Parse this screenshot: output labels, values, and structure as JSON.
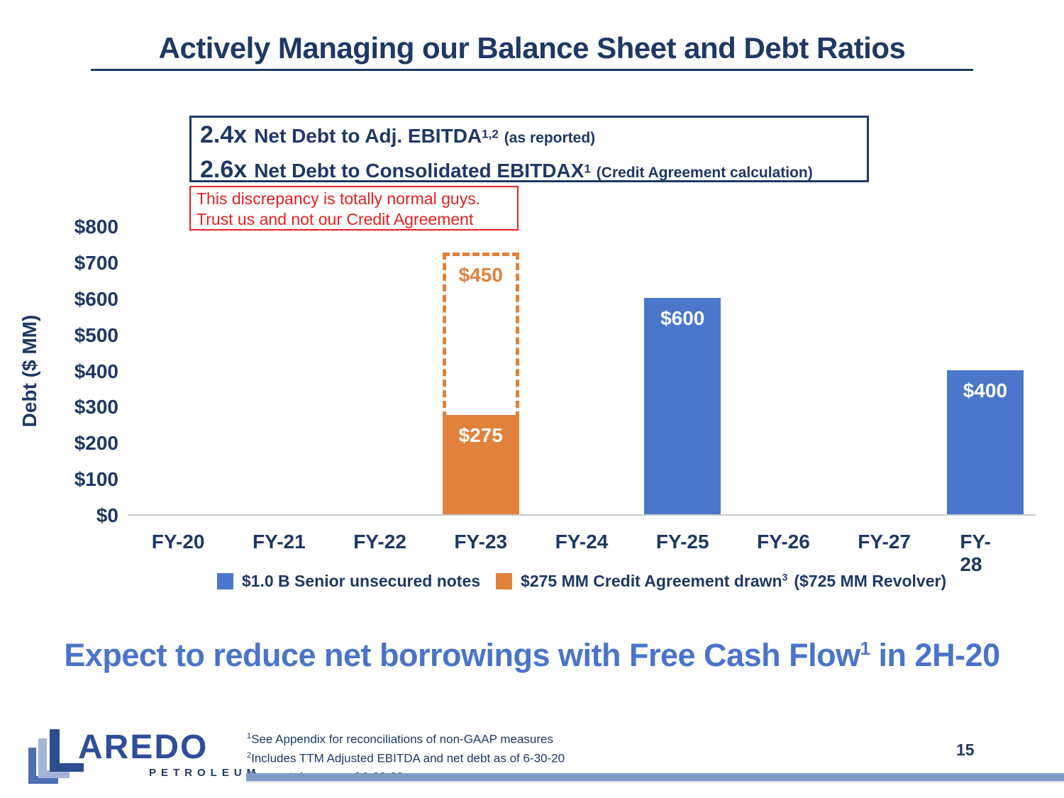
{
  "slide": {
    "title": "Actively Managing our Balance Sheet and Debt Ratios",
    "page_number": "15"
  },
  "colors": {
    "navy": "#1F3864",
    "blue": "#4A77C9",
    "orange": "#E0813C",
    "red": "#E62020",
    "headline_blue": "#4A74C9",
    "footer_bar": "#7E9AC4",
    "baseline_gray": "#CBCBCB"
  },
  "ratio_box": {
    "rows": [
      {
        "ratio": "2.4x",
        "main": "Net Debt to Adj. EBITDA",
        "sup": "1,2",
        "note": "(as reported)"
      },
      {
        "ratio": "2.6x",
        "main": "Net Debt to Consolidated EBITDAX",
        "sup": "1",
        "note": "(Credit Agreement calculation)"
      }
    ]
  },
  "annotation_box": {
    "line1": "This discrepancy is totally normal guys.",
    "line2": "Trust us and not our Credit Agreement"
  },
  "chart_data": {
    "type": "bar",
    "ylabel": "Debt ($ MM)",
    "ylim": [
      0,
      800
    ],
    "yticks": [
      "$800",
      "$700",
      "$600",
      "$500",
      "$400",
      "$300",
      "$200",
      "$100",
      "$0"
    ],
    "categories": [
      "FY-20",
      "FY-21",
      "FY-22",
      "FY-23",
      "FY-24",
      "FY-25",
      "FY-26",
      "FY-27",
      "FY-28"
    ],
    "series": [
      {
        "name": "$1.0 B Senior unsecured notes",
        "color": "#4A77C9",
        "values": [
          0,
          0,
          0,
          0,
          0,
          600,
          0,
          0,
          400
        ]
      },
      {
        "name": "$275 MM Credit Agreement drawn ($725 MM Revolver)",
        "color": "#E0813C",
        "values": [
          0,
          0,
          0,
          275,
          0,
          0,
          0,
          0,
          0
        ]
      }
    ],
    "bar_labels": [
      {
        "category": "FY-23",
        "label": "$275"
      },
      {
        "category": "FY-25",
        "label": "$600"
      },
      {
        "category": "FY-28",
        "label": "$400"
      }
    ],
    "dashed_overlay": {
      "category": "FY-23",
      "from": 275,
      "to": 725,
      "label": "$450"
    },
    "legend_position": "bottom",
    "grid": false
  },
  "legend": {
    "senior_notes": {
      "label": "$1.0 B Senior unsecured notes",
      "color": "#4A77C9"
    },
    "credit_agreement": {
      "label": "$275 MM Credit Agreement drawn",
      "sup": "3",
      "tail": "($725 MM Revolver)",
      "color": "#E0813C"
    }
  },
  "headline": {
    "pre": "Expect to reduce net borrowings with Free Cash Flow",
    "sup": "1",
    "post": " in 2H-20"
  },
  "footnotes": [
    {
      "sup": "1",
      "text": "See Appendix for reconciliations of non-GAAP measures"
    },
    {
      "sup": "2",
      "text": "Includes TTM Adjusted EBITDA and net debt as of 6-30-20"
    },
    {
      "sup": "3",
      "text": "Amount drawn as of 6-30-20"
    }
  ],
  "logo": {
    "word_rest": "AREDO",
    "sub": "PETROLEUM"
  }
}
